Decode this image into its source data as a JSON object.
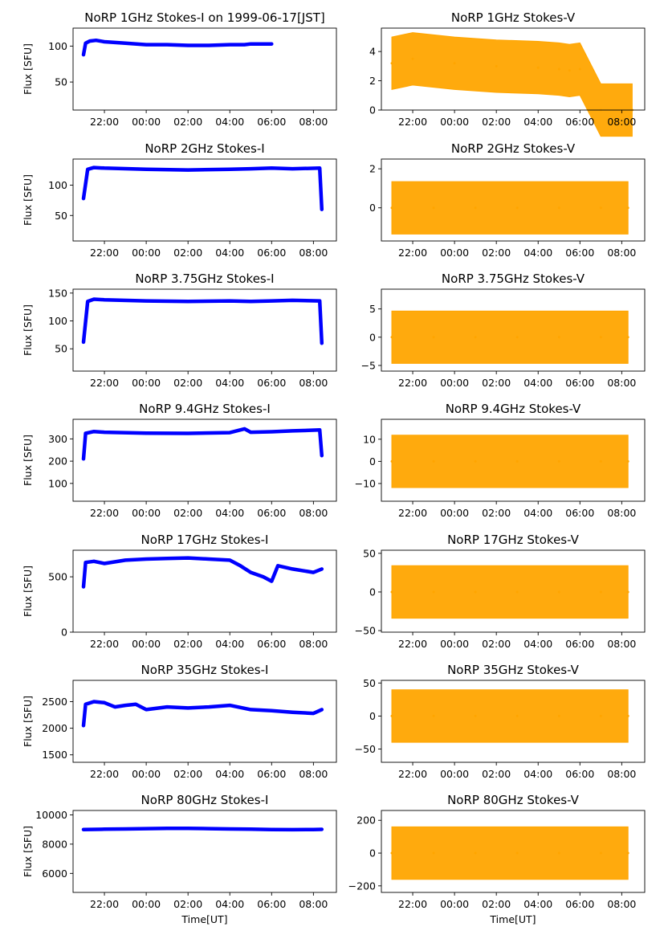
{
  "figure": {
    "time_axis_label": "Time[UT]",
    "flux_axis_label": "Flux [SFU]",
    "time_ticks": [
      "22:00",
      "00:00",
      "02:00",
      "04:00",
      "06:00",
      "08:00"
    ],
    "colors": {
      "stokes_i": "#0000ff",
      "stokes_v": "#ffa500"
    }
  },
  "chart_data": [
    {
      "id": "i1",
      "type": "scatter",
      "title": "NoRP 1GHz Stokes-I on 1999-06-17[JST]",
      "ylabel": "Flux [SFU]",
      "xlim": [
        20.5,
        33.1
      ],
      "ylim": [
        11,
        125
      ],
      "yticks": [
        50,
        100
      ],
      "yticklabels": [
        "50",
        "100"
      ],
      "color": "#0000ff",
      "x": [
        21.0,
        21.1,
        21.3,
        21.6,
        22.0,
        22.5,
        23.0,
        24.0,
        25.0,
        26.0,
        27.0,
        28.0,
        28.7,
        29.0,
        30.0
      ],
      "y": [
        88,
        104,
        107,
        108,
        106,
        105,
        104,
        102,
        102,
        101,
        101,
        102,
        102,
        103,
        103
      ]
    },
    {
      "id": "v1",
      "type": "scatter",
      "title": "NoRP 1GHz Stokes-V",
      "xlim": [
        20.5,
        33.1
      ],
      "ylim": [
        0,
        5.6
      ],
      "yticks": [
        0,
        2,
        4
      ],
      "yticklabels": [
        "0",
        "2",
        "4"
      ],
      "color": "#ffa500",
      "x": [
        21.0,
        22.0,
        24.0,
        26.0,
        28.0,
        29.0,
        29.5,
        30.0,
        31.0,
        32.5
      ],
      "y": [
        3.2,
        3.5,
        3.2,
        3.0,
        2.9,
        2.8,
        2.7,
        2.8,
        0,
        0
      ]
    },
    {
      "id": "i2",
      "type": "scatter",
      "title": "NoRP 2GHz Stokes-I",
      "ylabel": "Flux [SFU]",
      "xlim": [
        20.5,
        33.1
      ],
      "ylim": [
        8,
        143
      ],
      "yticks": [
        50,
        100
      ],
      "yticklabels": [
        "50",
        "100"
      ],
      "color": "#0000ff",
      "x": [
        21.0,
        21.2,
        21.5,
        22.0,
        24.0,
        26.0,
        28.0,
        29.0,
        30.0,
        31.0,
        32.3,
        32.4
      ],
      "y": [
        78,
        126,
        129,
        128,
        126,
        125,
        126,
        127,
        128,
        127,
        128,
        60
      ]
    },
    {
      "id": "v2",
      "type": "scatter",
      "title": "NoRP 2GHz Stokes-V",
      "xlim": [
        20.5,
        33.1
      ],
      "ylim": [
        -1.7,
        2.5
      ],
      "yticks": [
        0,
        2
      ],
      "yticklabels": [
        "0",
        "2"
      ],
      "color": "#ffa500",
      "x": [
        21.0,
        23.0,
        25.0,
        27.0,
        29.0,
        31.0,
        32.3
      ],
      "y": [
        0,
        0,
        0,
        0,
        0,
        0,
        0
      ]
    },
    {
      "id": "i3",
      "type": "scatter",
      "title": "NoRP 3.75GHz Stokes-I",
      "ylabel": "Flux [SFU]",
      "xlim": [
        20.5,
        33.1
      ],
      "ylim": [
        10,
        157
      ],
      "yticks": [
        50,
        100,
        150
      ],
      "yticklabels": [
        "50",
        "100",
        "150"
      ],
      "color": "#0000ff",
      "x": [
        21.0,
        21.2,
        21.5,
        22.0,
        24.0,
        26.0,
        28.0,
        29.0,
        30.0,
        31.0,
        32.3,
        32.4
      ],
      "y": [
        62,
        135,
        139,
        138,
        136,
        135,
        136,
        135,
        136,
        137,
        136,
        60
      ]
    },
    {
      "id": "v3",
      "type": "scatter",
      "title": "NoRP 3.75GHz Stokes-V",
      "xlim": [
        20.5,
        33.1
      ],
      "ylim": [
        -6,
        8.5
      ],
      "yticks": [
        -5,
        0,
        5
      ],
      "yticklabels": [
        "−5",
        "0",
        "5"
      ],
      "color": "#ffa500",
      "x": [
        21.0,
        23.0,
        25.0,
        27.0,
        29.0,
        31.0,
        32.3
      ],
      "y": [
        0,
        0,
        0,
        0,
        0,
        0,
        0
      ]
    },
    {
      "id": "i4",
      "type": "scatter",
      "title": "NoRP 9.4GHz Stokes-I",
      "ylabel": "Flux [SFU]",
      "xlim": [
        20.5,
        33.1
      ],
      "ylim": [
        20,
        388
      ],
      "yticks": [
        100,
        200,
        300
      ],
      "yticklabels": [
        "100",
        "200",
        "300"
      ],
      "color": "#0000ff",
      "x": [
        21.0,
        21.1,
        21.5,
        22.0,
        24.0,
        26.0,
        28.0,
        28.7,
        29.0,
        30.0,
        31.0,
        32.3,
        32.4
      ],
      "y": [
        210,
        325,
        333,
        330,
        326,
        325,
        328,
        345,
        330,
        332,
        336,
        340,
        225
      ]
    },
    {
      "id": "v4",
      "type": "scatter",
      "title": "NoRP 9.4GHz Stokes-V",
      "xlim": [
        20.5,
        33.1
      ],
      "ylim": [
        -18,
        19
      ],
      "yticks": [
        -10,
        0,
        10
      ],
      "yticklabels": [
        "−10",
        "0",
        "10"
      ],
      "color": "#ffa500",
      "x": [
        21.0,
        23.0,
        25.0,
        27.0,
        29.0,
        31.0,
        32.3
      ],
      "y": [
        0,
        0,
        0,
        0,
        0,
        0,
        0
      ]
    },
    {
      "id": "i5",
      "type": "scatter",
      "title": "NoRP 17GHz Stokes-I",
      "ylabel": "Flux [SFU]",
      "xlim": [
        20.5,
        33.1
      ],
      "ylim": [
        0,
        740
      ],
      "yticks": [
        0,
        500
      ],
      "yticklabels": [
        "0",
        "500"
      ],
      "color": "#0000ff",
      "x": [
        21.0,
        21.1,
        21.5,
        22.0,
        23.0,
        24.0,
        25.0,
        26.0,
        27.0,
        28.0,
        28.5,
        29.0,
        29.6,
        30.0,
        30.3,
        31.0,
        32.0,
        32.4
      ],
      "y": [
        410,
        630,
        640,
        620,
        650,
        660,
        665,
        670,
        660,
        650,
        600,
        540,
        500,
        460,
        600,
        570,
        540,
        570
      ]
    },
    {
      "id": "v5",
      "type": "scatter",
      "title": "NoRP 17GHz Stokes-V",
      "xlim": [
        20.5,
        33.1
      ],
      "ylim": [
        -52,
        54
      ],
      "yticks": [
        -50,
        0,
        50
      ],
      "yticklabels": [
        "−50",
        "0",
        "50"
      ],
      "color": "#ffa500",
      "x": [
        21.0,
        23.0,
        25.0,
        27.0,
        29.0,
        31.0,
        32.3
      ],
      "y": [
        0,
        0,
        0,
        0,
        0,
        0,
        0
      ]
    },
    {
      "id": "i6",
      "type": "scatter",
      "title": "NoRP 35GHz Stokes-I",
      "ylabel": "Flux [SFU]",
      "xlim": [
        20.5,
        33.1
      ],
      "ylim": [
        1360,
        2900
      ],
      "yticks": [
        1500,
        2000,
        2500
      ],
      "yticklabels": [
        "1500",
        "2000",
        "2500"
      ],
      "color": "#0000ff",
      "x": [
        21.0,
        21.1,
        21.5,
        22.0,
        22.5,
        23.0,
        23.5,
        24.0,
        25.0,
        26.0,
        27.0,
        28.0,
        29.0,
        30.0,
        31.0,
        32.0,
        32.4
      ],
      "y": [
        2050,
        2450,
        2500,
        2480,
        2400,
        2430,
        2450,
        2350,
        2400,
        2380,
        2400,
        2430,
        2350,
        2330,
        2300,
        2280,
        2350
      ]
    },
    {
      "id": "v6",
      "type": "scatter",
      "title": "NoRP 35GHz Stokes-V",
      "xlim": [
        20.5,
        33.1
      ],
      "ylim": [
        -70,
        54
      ],
      "yticks": [
        -50,
        0,
        50
      ],
      "yticklabels": [
        "−50",
        "0",
        "50"
      ],
      "color": "#ffa500",
      "x": [
        21.0,
        23.0,
        25.0,
        27.0,
        29.0,
        31.0,
        32.3
      ],
      "y": [
        0,
        0,
        0,
        0,
        0,
        0,
        0
      ]
    },
    {
      "id": "i7",
      "type": "scatter",
      "title": "NoRP 80GHz Stokes-I",
      "ylabel": "Flux [SFU]",
      "xlabel": "Time[UT]",
      "xlim": [
        20.5,
        33.1
      ],
      "ylim": [
        4700,
        10300
      ],
      "yticks": [
        6000,
        8000,
        10000
      ],
      "yticklabels": [
        "6000",
        "8000",
        "10000"
      ],
      "color": "#0000ff",
      "x": [
        21.0,
        22.0,
        23.0,
        24.0,
        25.0,
        26.0,
        27.0,
        28.0,
        29.0,
        30.0,
        31.0,
        32.0,
        32.4
      ],
      "y": [
        9000,
        9020,
        9040,
        9060,
        9080,
        9080,
        9060,
        9040,
        9020,
        9000,
        8990,
        9000,
        9010
      ]
    },
    {
      "id": "v7",
      "type": "scatter",
      "title": "NoRP 80GHz Stokes-V",
      "xlabel": "Time[UT]",
      "xlim": [
        20.5,
        33.1
      ],
      "ylim": [
        -240,
        260
      ],
      "yticks": [
        -200,
        0,
        200
      ],
      "yticklabels": [
        "−200",
        "0",
        "200"
      ],
      "color": "#ffa500",
      "x": [
        21.0,
        23.0,
        25.0,
        27.0,
        29.0,
        31.0,
        32.3
      ],
      "y": [
        0,
        0,
        0,
        0,
        0,
        0,
        0
      ]
    }
  ]
}
